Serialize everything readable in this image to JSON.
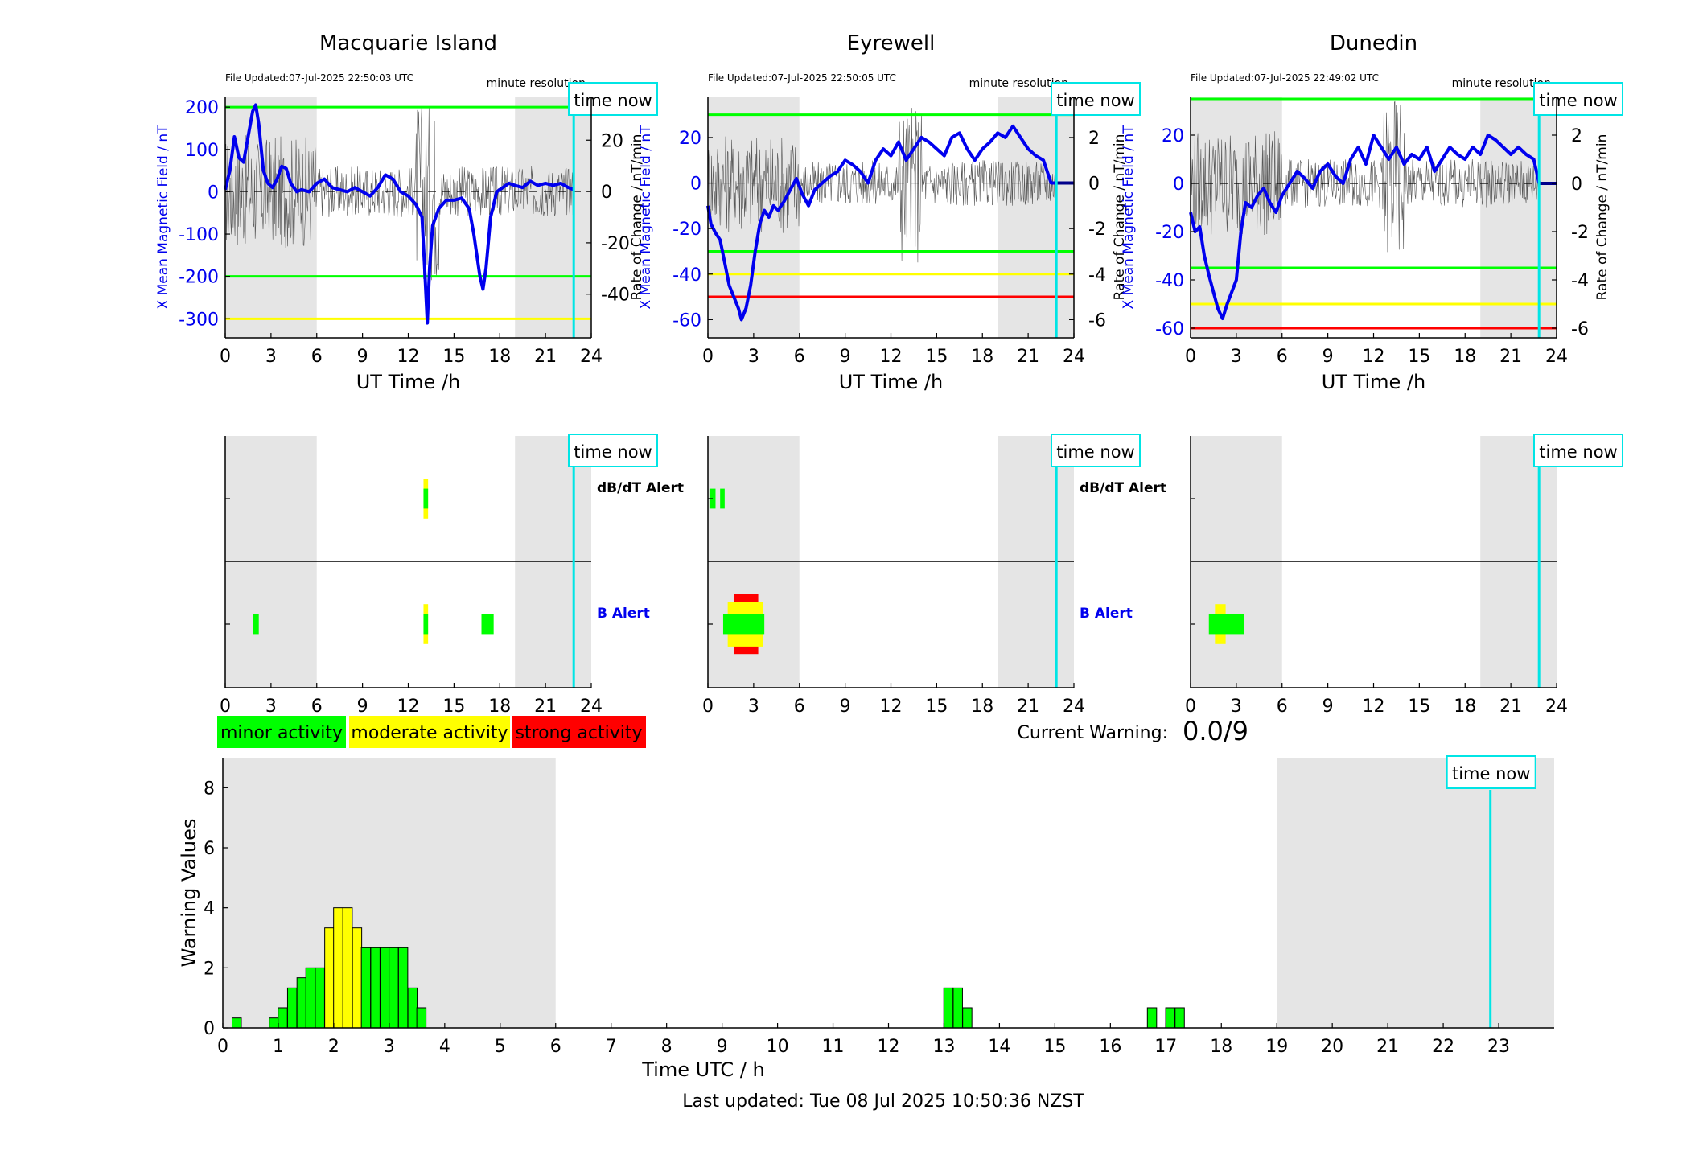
{
  "colors": {
    "blue": "#0000ee",
    "cyan": "#00e5e5",
    "green": "#00ff00",
    "yellow": "#ffff00",
    "red": "#ff0000",
    "night": "#e5e5e5"
  },
  "labels": {
    "ut_time": "UT Time /h",
    "x_field": "X Mean Magnetic Field / nT",
    "rate": "Rate of Change / nT/min",
    "minute_res": "minute resolution",
    "time_now": "time now",
    "dbdt_alert": "dB/dT Alert",
    "b_alert": "B Alert",
    "current_warning_label": "Current Warning:",
    "current_warning_value": "0.0/9",
    "warning_values": "Warning Values",
    "time_utc": "Time UTC / h",
    "last_updated": "Last updated: Tue 08 Jul 2025 10:50:36 NZST"
  },
  "legend": [
    {
      "label": "minor activity",
      "color": "#00ff00"
    },
    {
      "label": "moderate activity",
      "color": "#ffff00"
    },
    {
      "label": "strong activity",
      "color": "#ff0000"
    }
  ],
  "chart_data": [
    {
      "type": "line",
      "title": "Macquarie Island",
      "file_updated": "File Updated:07-Jul-2025 22:50:03 UTC",
      "xlabel": "UT Time /h",
      "ylabel": "X Mean Magnetic Field / nT",
      "y2label": "Rate of Change / nT/min",
      "xlim": [
        0,
        24
      ],
      "xticks": [
        0,
        3,
        6,
        9,
        12,
        15,
        18,
        21,
        24
      ],
      "ylim": [
        -345,
        225
      ],
      "yticks": [
        200,
        100,
        0,
        -100,
        -200,
        -300
      ],
      "y2lim": [
        -57,
        37
      ],
      "y2ticks": [
        20,
        0,
        -20,
        -40
      ],
      "night": [
        [
          0,
          6
        ],
        [
          19,
          24
        ]
      ],
      "time_now": 22.85,
      "thresholds": [
        {
          "y": 200,
          "color": "#00ff00"
        },
        {
          "y": -200,
          "color": "#00ff00"
        },
        {
          "y": -300,
          "color": "#ffff00"
        }
      ],
      "series": [
        {
          "x": [
            0,
            0.3,
            0.6,
            0.9,
            1.2,
            1.5,
            1.8,
            2.0,
            2.2,
            2.5,
            2.8,
            3.1,
            3.4,
            3.7,
            4.0,
            4.3,
            4.7,
            5.0,
            5.5,
            6.0,
            6.5,
            7.0,
            7.5,
            8.0,
            8.5,
            9.0,
            9.5,
            10.0,
            10.5,
            11.0,
            11.5,
            12.0,
            12.5,
            12.9,
            13.1,
            13.25,
            13.4,
            13.6,
            14.0,
            14.5,
            15.0,
            15.5,
            16.0,
            16.3,
            16.7,
            16.9,
            17.1,
            17.4,
            17.8,
            18.2,
            18.6,
            19.0,
            19.5,
            20.0,
            20.5,
            21.0,
            21.5,
            22.0,
            22.5,
            22.85
          ],
          "y": [
            5,
            50,
            130,
            80,
            70,
            130,
            190,
            205,
            160,
            50,
            20,
            10,
            30,
            60,
            55,
            20,
            0,
            5,
            0,
            20,
            30,
            10,
            5,
            0,
            10,
            0,
            -10,
            10,
            40,
            30,
            0,
            -10,
            -30,
            -60,
            -200,
            -310,
            -180,
            -80,
            -40,
            -20,
            -20,
            -15,
            -40,
            -100,
            -200,
            -230,
            -180,
            -60,
            0,
            10,
            20,
            15,
            10,
            25,
            15,
            20,
            15,
            20,
            10,
            5
          ]
        }
      ]
    },
    {
      "type": "line",
      "title": "Eyrewell",
      "file_updated": "File Updated:07-Jul-2025 22:50:05 UTC",
      "xlabel": "UT Time /h",
      "ylabel": "X Mean Magnetic Field / nT",
      "y2label": "Rate of Change / nT/min",
      "xlim": [
        0,
        24
      ],
      "xticks": [
        0,
        3,
        6,
        9,
        12,
        15,
        18,
        21,
        24
      ],
      "ylim": [
        -68,
        38
      ],
      "yticks": [
        20,
        0,
        -20,
        -40,
        -60
      ],
      "y2lim": [
        -6.8,
        3.8
      ],
      "y2ticks": [
        2,
        0,
        -2,
        -4,
        -6
      ],
      "night": [
        [
          0,
          6
        ],
        [
          19,
          24
        ]
      ],
      "time_now": 22.85,
      "thresholds": [
        {
          "y": 30,
          "color": "#00ff00"
        },
        {
          "y": -30,
          "color": "#00ff00"
        },
        {
          "y": -40,
          "color": "#ffff00"
        },
        {
          "y": -50,
          "color": "#ff0000"
        }
      ],
      "series": [
        {
          "x": [
            0,
            0.2,
            0.5,
            0.8,
            1.1,
            1.4,
            1.7,
            2.0,
            2.2,
            2.5,
            2.8,
            3.1,
            3.4,
            3.7,
            4.0,
            4.3,
            4.6,
            5.0,
            5.4,
            5.8,
            6.2,
            6.6,
            7.0,
            7.5,
            8.0,
            8.5,
            9.0,
            9.5,
            10.0,
            10.5,
            11.0,
            11.5,
            12.0,
            12.5,
            13.0,
            13.5,
            14.0,
            14.5,
            15.0,
            15.5,
            16.0,
            16.5,
            17.0,
            17.5,
            18.0,
            18.5,
            19.0,
            19.5,
            20.0,
            20.5,
            21.0,
            21.5,
            22.0,
            22.5,
            22.85
          ],
          "y": [
            -10,
            -18,
            -22,
            -25,
            -35,
            -45,
            -50,
            -55,
            -60,
            -55,
            -45,
            -30,
            -18,
            -12,
            -15,
            -10,
            -12,
            -8,
            -3,
            2,
            -5,
            -10,
            -3,
            0,
            3,
            5,
            10,
            8,
            5,
            0,
            10,
            15,
            12,
            18,
            10,
            15,
            20,
            18,
            15,
            12,
            20,
            22,
            15,
            10,
            15,
            18,
            22,
            20,
            25,
            20,
            15,
            12,
            10,
            0,
            0
          ]
        }
      ]
    },
    {
      "type": "line",
      "title": "Dunedin",
      "file_updated": "File Updated:07-Jul-2025 22:49:02 UTC",
      "xlabel": "UT Time /h",
      "ylabel": "X Mean Magnetic Field / nT",
      "y2label": "Rate of Change / nT/min",
      "xlim": [
        0,
        24
      ],
      "xticks": [
        0,
        3,
        6,
        9,
        12,
        15,
        18,
        21,
        24
      ],
      "ylim": [
        -64,
        36
      ],
      "yticks": [
        20,
        0,
        -20,
        -40,
        -60
      ],
      "y2lim": [
        -6.4,
        3.6
      ],
      "y2ticks": [
        2,
        0,
        -2,
        -4,
        -6
      ],
      "night": [
        [
          0,
          6
        ],
        [
          19,
          24
        ]
      ],
      "time_now": 22.85,
      "thresholds": [
        {
          "y": 35,
          "color": "#00ff00"
        },
        {
          "y": -35,
          "color": "#00ff00"
        },
        {
          "y": -50,
          "color": "#ffff00"
        },
        {
          "y": -60,
          "color": "#ff0000"
        }
      ],
      "series": [
        {
          "x": [
            0,
            0.3,
            0.6,
            0.9,
            1.2,
            1.5,
            1.8,
            2.1,
            2.4,
            2.7,
            3.0,
            3.3,
            3.6,
            4.0,
            4.4,
            4.8,
            5.2,
            5.6,
            6.0,
            6.5,
            7.0,
            7.5,
            8.0,
            8.5,
            9.0,
            9.5,
            10.0,
            10.5,
            11.0,
            11.5,
            12.0,
            12.5,
            13.0,
            13.5,
            14.0,
            14.5,
            15.0,
            15.5,
            16.0,
            16.5,
            17.0,
            17.5,
            18.0,
            18.5,
            19.0,
            19.5,
            20.0,
            20.5,
            21.0,
            21.5,
            22.0,
            22.5,
            22.85
          ],
          "y": [
            -12,
            -20,
            -18,
            -30,
            -38,
            -45,
            -52,
            -56,
            -50,
            -45,
            -40,
            -20,
            -8,
            -10,
            -5,
            -2,
            -8,
            -12,
            -5,
            0,
            5,
            2,
            -2,
            5,
            8,
            3,
            0,
            10,
            15,
            8,
            20,
            15,
            10,
            15,
            8,
            12,
            10,
            15,
            5,
            10,
            15,
            12,
            10,
            15,
            12,
            20,
            18,
            15,
            12,
            15,
            12,
            10,
            0
          ]
        }
      ]
    },
    {
      "type": "bar",
      "title": "",
      "xlabel": "Time UTC / h",
      "ylabel": "Warning Values",
      "xlim": [
        0,
        24
      ],
      "xticks": [
        0,
        1,
        2,
        3,
        4,
        5,
        6,
        7,
        8,
        9,
        10,
        11,
        12,
        13,
        14,
        15,
        16,
        17,
        18,
        19,
        20,
        21,
        22,
        23
      ],
      "ylim": [
        0,
        9
      ],
      "yticks": [
        0,
        2,
        4,
        6,
        8
      ],
      "night": [
        [
          0,
          6
        ],
        [
          19,
          24
        ]
      ],
      "time_now": 22.85,
      "bin_width": 0.1667,
      "bars": [
        {
          "x": 0.25,
          "v": 0.33,
          "c": "g"
        },
        {
          "x": 0.92,
          "v": 0.33,
          "c": "g"
        },
        {
          "x": 1.08,
          "v": 0.67,
          "c": "g"
        },
        {
          "x": 1.25,
          "v": 1.33,
          "c": "g"
        },
        {
          "x": 1.42,
          "v": 1.67,
          "c": "g"
        },
        {
          "x": 1.58,
          "v": 2.0,
          "c": "g"
        },
        {
          "x": 1.75,
          "v": 2.0,
          "c": "g"
        },
        {
          "x": 1.92,
          "v": 3.33,
          "c": "y"
        },
        {
          "x": 2.08,
          "v": 4.0,
          "c": "y"
        },
        {
          "x": 2.25,
          "v": 4.0,
          "c": "y"
        },
        {
          "x": 2.42,
          "v": 3.33,
          "c": "y"
        },
        {
          "x": 2.58,
          "v": 2.67,
          "c": "g"
        },
        {
          "x": 2.75,
          "v": 2.67,
          "c": "g"
        },
        {
          "x": 2.92,
          "v": 2.67,
          "c": "g"
        },
        {
          "x": 3.08,
          "v": 2.67,
          "c": "g"
        },
        {
          "x": 3.25,
          "v": 2.67,
          "c": "g"
        },
        {
          "x": 3.42,
          "v": 1.33,
          "c": "g"
        },
        {
          "x": 3.58,
          "v": 0.67,
          "c": "g"
        },
        {
          "x": 13.08,
          "v": 1.33,
          "c": "g"
        },
        {
          "x": 13.25,
          "v": 1.33,
          "c": "g"
        },
        {
          "x": 13.42,
          "v": 0.67,
          "c": "g"
        },
        {
          "x": 16.75,
          "v": 0.67,
          "c": "g"
        },
        {
          "x": 17.08,
          "v": 0.67,
          "c": "g"
        },
        {
          "x": 17.25,
          "v": 0.67,
          "c": "g"
        }
      ]
    }
  ],
  "alert_data": [
    {
      "station": "Macquarie Island",
      "time_now": 22.85,
      "night": [
        [
          0,
          6
        ],
        [
          19,
          24
        ]
      ],
      "dbdt": [
        {
          "x0": 13.0,
          "x1": 13.3,
          "c": "y",
          "h": 0.8
        },
        {
          "x0": 13.0,
          "x1": 13.3,
          "c": "g",
          "h": 0.4
        }
      ],
      "b": [
        {
          "x0": 13.0,
          "x1": 13.3,
          "c": "y",
          "h": 0.8
        },
        {
          "x0": 13.0,
          "x1": 13.3,
          "c": "g",
          "h": 0.4
        },
        {
          "x0": 1.8,
          "x1": 2.2,
          "c": "g",
          "h": 0.4
        },
        {
          "x0": 16.8,
          "x1": 17.6,
          "c": "g",
          "h": 0.4
        }
      ]
    },
    {
      "station": "Eyrewell",
      "time_now": 22.85,
      "night": [
        [
          0,
          6
        ],
        [
          19,
          24
        ]
      ],
      "dbdt": [
        {
          "x0": 0.1,
          "x1": 0.5,
          "c": "g",
          "h": 0.4
        },
        {
          "x0": 0.8,
          "x1": 1.1,
          "c": "g",
          "h": 0.4
        }
      ],
      "b": [
        {
          "x0": 1.7,
          "x1": 3.3,
          "c": "r",
          "h": 1.2
        },
        {
          "x0": 1.3,
          "x1": 3.6,
          "c": "y",
          "h": 0.9
        },
        {
          "x0": 1.0,
          "x1": 3.7,
          "c": "g",
          "h": 0.4
        }
      ]
    },
    {
      "station": "Dunedin",
      "time_now": 22.85,
      "night": [
        [
          0,
          6
        ],
        [
          19,
          24
        ]
      ],
      "dbdt": [],
      "b": [
        {
          "x0": 1.6,
          "x1": 2.3,
          "c": "y",
          "h": 0.8
        },
        {
          "x0": 1.2,
          "x1": 3.5,
          "c": "g",
          "h": 0.4
        }
      ]
    }
  ]
}
